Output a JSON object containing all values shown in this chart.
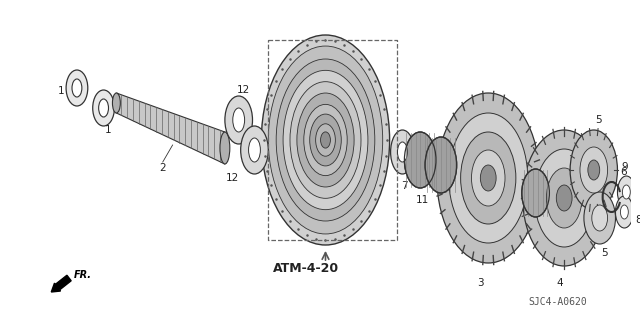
{
  "bg_color": "#ffffff",
  "diagram_label": "ATM-4-20",
  "part_code": "SJC4-A0620",
  "fr_label": "FR.",
  "line_color": "#333333",
  "text_color": "#222222"
}
